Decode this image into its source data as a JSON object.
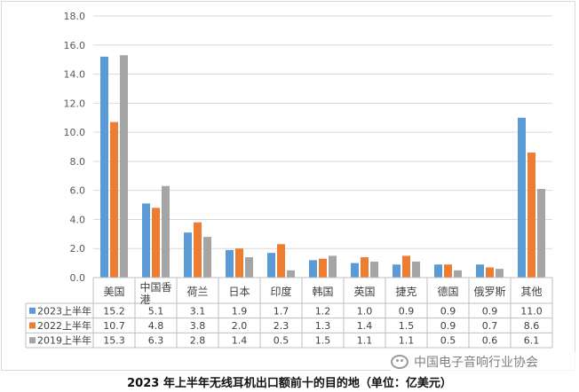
{
  "chart_data": {
    "type": "bar",
    "title": "",
    "caption": "2023 年上半年无线耳机出口额前十的目的地（单位：亿美元）",
    "categories": [
      "美国",
      "中国香港",
      "荷兰",
      "日本",
      "印度",
      "韩国",
      "英国",
      "捷克",
      "德国",
      "俄罗斯",
      "其他"
    ],
    "series": [
      {
        "name": "2023上半年",
        "color": "#5b9bd5",
        "values": [
          15.2,
          5.1,
          3.1,
          1.9,
          1.7,
          1.2,
          1.0,
          0.9,
          0.9,
          0.9,
          11.0
        ]
      },
      {
        "name": "2022上半年",
        "color": "#ed7d31",
        "values": [
          10.7,
          4.8,
          3.8,
          2.0,
          2.3,
          1.3,
          1.4,
          1.5,
          0.9,
          0.7,
          8.6
        ]
      },
      {
        "name": "2019上半年",
        "color": "#a5a5a5",
        "values": [
          15.3,
          6.3,
          2.8,
          1.4,
          0.5,
          1.5,
          1.1,
          1.1,
          0.5,
          0.6,
          6.1
        ]
      }
    ],
    "yticks": [
      "0.0",
      "2.0",
      "4.0",
      "6.0",
      "8.0",
      "10.0",
      "12.0",
      "14.0",
      "16.0",
      "18.0"
    ],
    "ylim": [
      0,
      18
    ],
    "grid": true,
    "legend": "data-table"
  },
  "watermark": "中国电子音响行业协会"
}
